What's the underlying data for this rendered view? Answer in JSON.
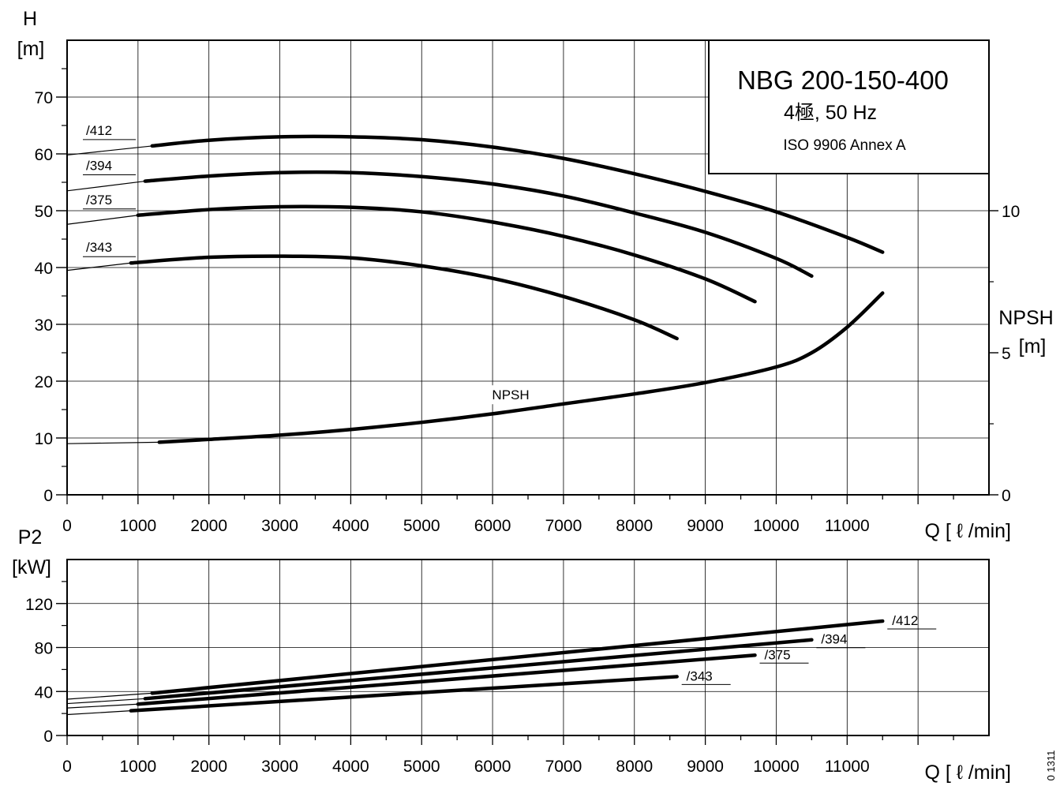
{
  "title_box": {
    "model": "NBG 200-150-400",
    "speed": "4極, 50 Hz",
    "standard": "ISO 9906 Annex A"
  },
  "side_code": "0 1311",
  "chart_data": [
    {
      "type": "line",
      "name": "head",
      "ylabel": "H",
      "yunit": "[m]",
      "xlabel": "Q [ ℓ /min]",
      "xlim": [
        0,
        13000
      ],
      "ylim": [
        0,
        80
      ],
      "xticks": [
        0,
        1000,
        2000,
        3000,
        4000,
        5000,
        6000,
        7000,
        8000,
        9000,
        10000,
        11000
      ],
      "yticks": [
        0,
        10,
        20,
        30,
        40,
        50,
        60,
        70
      ],
      "grid": true,
      "series": [
        {
          "name": "/412",
          "x": [
            1200,
            2000,
            3000,
            4000,
            5000,
            6000,
            7000,
            8000,
            9000,
            10000,
            11000,
            11500
          ],
          "y": [
            61.4,
            62.4,
            63.0,
            63.0,
            62.5,
            61.2,
            59.2,
            56.5,
            53.4,
            49.8,
            45.3,
            42.7
          ]
        },
        {
          "name": "/394",
          "x": [
            1100,
            2000,
            3000,
            4000,
            5000,
            6000,
            7000,
            8000,
            9000,
            10000,
            10500
          ],
          "y": [
            55.2,
            56.1,
            56.7,
            56.7,
            56.0,
            54.7,
            52.6,
            49.6,
            46.2,
            41.6,
            38.5
          ]
        },
        {
          "name": "/375",
          "x": [
            1000,
            2000,
            3000,
            4000,
            5000,
            6000,
            7000,
            8000,
            9000,
            9700
          ],
          "y": [
            49.2,
            50.2,
            50.7,
            50.6,
            49.8,
            48.0,
            45.5,
            42.2,
            38.0,
            34.0
          ]
        },
        {
          "name": "/343",
          "x": [
            900,
            2000,
            3000,
            4000,
            5000,
            6000,
            7000,
            8000,
            8600
          ],
          "y": [
            40.8,
            41.8,
            42.0,
            41.7,
            40.3,
            38.1,
            34.9,
            30.8,
            27.5
          ]
        }
      ],
      "extrapolations": [
        {
          "series": "/412",
          "x": [
            0,
            1200
          ],
          "y": [
            59.8,
            61.4
          ]
        },
        {
          "series": "/394",
          "x": [
            0,
            1100
          ],
          "y": [
            53.5,
            55.2
          ]
        },
        {
          "series": "/375",
          "x": [
            0,
            1000
          ],
          "y": [
            47.6,
            49.2
          ]
        },
        {
          "series": "/343",
          "x": [
            0,
            900
          ],
          "y": [
            39.5,
            40.8
          ]
        }
      ]
    },
    {
      "type": "line",
      "name": "npsh",
      "ylabel": "NPSH",
      "yunit": "[m]",
      "ylim": [
        0,
        16
      ],
      "yticks": [
        0,
        5,
        10
      ],
      "axis_side": "right",
      "series": [
        {
          "name": "NPSH",
          "x": [
            1300,
            2000,
            3000,
            4000,
            5000,
            6000,
            7000,
            8000,
            9000,
            10000,
            10500,
            11000,
            11500
          ],
          "y": [
            1.85,
            1.95,
            2.1,
            2.3,
            2.55,
            2.85,
            3.2,
            3.55,
            3.95,
            4.5,
            5.0,
            5.9,
            7.1
          ]
        }
      ],
      "extrapolations": [
        {
          "series": "NPSH",
          "x": [
            0,
            1300
          ],
          "y": [
            1.8,
            1.85
          ]
        }
      ]
    },
    {
      "type": "line",
      "name": "power",
      "ylabel": "P2",
      "yunit": "[kW]",
      "xlabel": "Q [ ℓ /min]",
      "xlim": [
        0,
        13000
      ],
      "ylim": [
        0,
        160
      ],
      "xticks": [
        0,
        1000,
        2000,
        3000,
        4000,
        5000,
        6000,
        7000,
        8000,
        9000,
        10000,
        11000
      ],
      "yticks": [
        0,
        40,
        80,
        120
      ],
      "grid": true,
      "series": [
        {
          "name": "/412",
          "x": [
            1200,
            11500
          ],
          "y": [
            38.5,
            104
          ]
        },
        {
          "name": "/394",
          "x": [
            1100,
            10500
          ],
          "y": [
            33.5,
            87
          ]
        },
        {
          "name": "/375",
          "x": [
            1000,
            9700
          ],
          "y": [
            28.5,
            73
          ]
        },
        {
          "name": "/343",
          "x": [
            900,
            8600
          ],
          "y": [
            22.5,
            53.5
          ]
        }
      ],
      "extrapolations": [
        {
          "series": "/412",
          "x": [
            0,
            1200
          ],
          "y": [
            33,
            38.5
          ]
        },
        {
          "series": "/394",
          "x": [
            0,
            1100
          ],
          "y": [
            29,
            33.5
          ]
        },
        {
          "series": "/375",
          "x": [
            0,
            1000
          ],
          "y": [
            25,
            28.5
          ]
        },
        {
          "series": "/343",
          "x": [
            0,
            900
          ],
          "y": [
            19,
            22.5
          ]
        }
      ]
    }
  ]
}
